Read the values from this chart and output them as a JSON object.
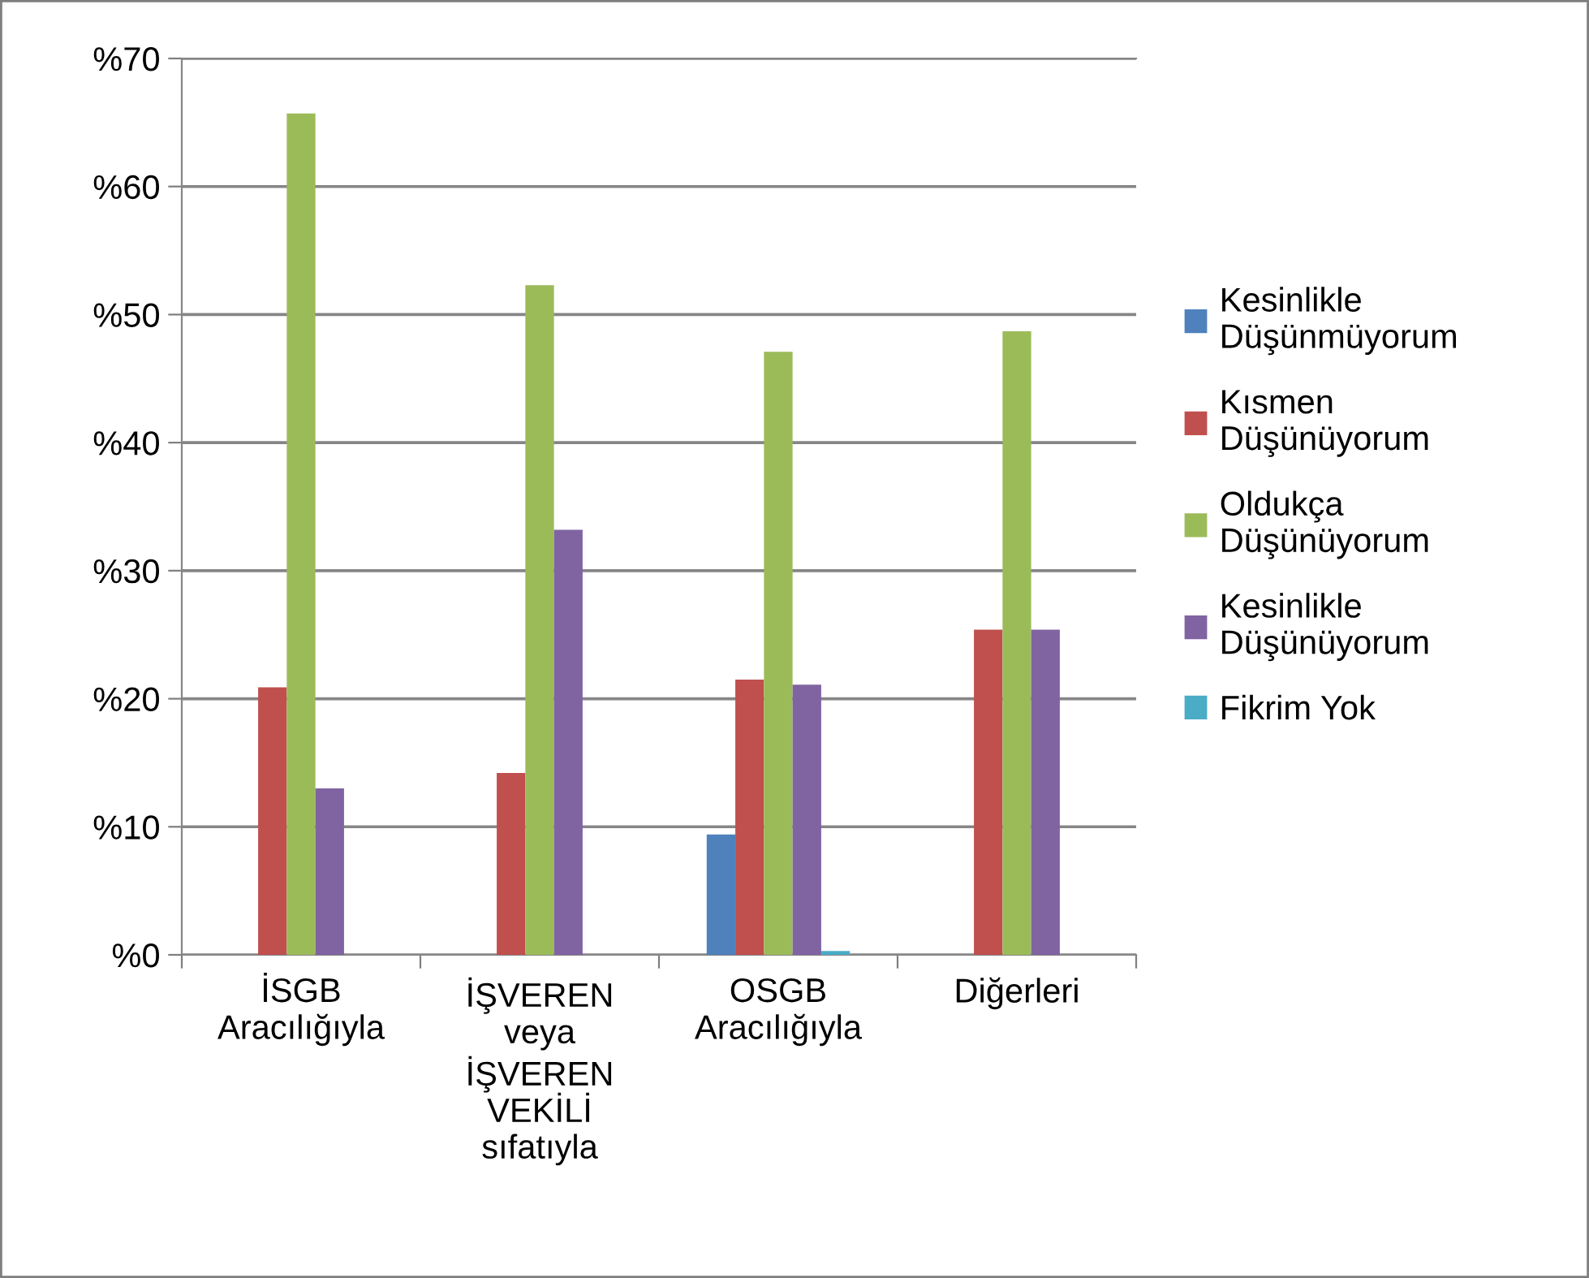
{
  "chart_data": {
    "type": "bar",
    "categories": [
      "İSGB\nAracılığıyla",
      "İŞVEREN\nveya\nİŞVEREN\nVEKİLİ\nsıfatıyla",
      "OSGB\nAracılığıyla",
      "Diğerleri"
    ],
    "series": [
      {
        "name": "Kesinlikle\nDüşünmüyorum",
        "color": "#4f81bd",
        "values": [
          0,
          0,
          9.4,
          0
        ]
      },
      {
        "name": "Kısmen\nDüşünüyorum",
        "color": "#c0504d",
        "values": [
          20.9,
          14.2,
          21.5,
          25.4
        ]
      },
      {
        "name": "Oldukça\nDüşünüyorum",
        "color": "#9bbb59",
        "values": [
          65.7,
          52.3,
          47.1,
          48.7
        ]
      },
      {
        "name": "Kesinlikle\nDüşünüyorum",
        "color": "#8064a2",
        "values": [
          13.0,
          33.2,
          21.1,
          25.4
        ]
      },
      {
        "name": "Fikrim Yok",
        "color": "#4bacc6",
        "values": [
          0,
          0,
          0.3,
          0
        ]
      }
    ],
    "ylim": [
      0,
      70
    ],
    "yticks": [
      {
        "value": 0,
        "label": "%0"
      },
      {
        "value": 10,
        "label": "%10"
      },
      {
        "value": 20,
        "label": "%20"
      },
      {
        "value": 30,
        "label": "%30"
      },
      {
        "value": 40,
        "label": "%40"
      },
      {
        "value": 50,
        "label": "%50"
      },
      {
        "value": 60,
        "label": "%60"
      },
      {
        "value": 70,
        "label": "%70"
      }
    ],
    "grid": "y",
    "legend": "right"
  }
}
